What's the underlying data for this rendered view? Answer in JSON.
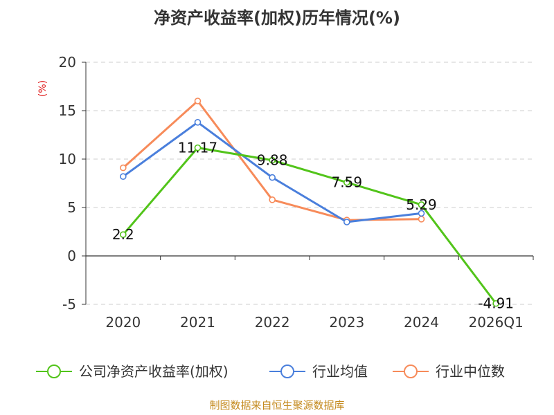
{
  "chart_data": {
    "type": "line",
    "title": "净资产收益率(加权)历年情况(%)",
    "ylabel": "(%)",
    "xlabel": "",
    "categories": [
      "2020",
      "2021",
      "2022",
      "2023",
      "2024",
      "2026Q1"
    ],
    "yticks": [
      "20",
      "15",
      "10",
      "5",
      "0",
      "-5"
    ],
    "ylim": [
      -5,
      20
    ],
    "grid": true,
    "legend_position": "bottom",
    "series": [
      {
        "name": "公司净资产收益率(加权)",
        "color": "#52c41a",
        "values": [
          2.2,
          11.17,
          9.88,
          7.59,
          5.29,
          -4.91
        ],
        "labels": [
          "2.2",
          "11.17",
          "9.88",
          "7.59",
          "5.29",
          "-4.91"
        ]
      },
      {
        "name": "行业均值",
        "color": "#4a7fdc",
        "values": [
          8.2,
          13.8,
          8.1,
          3.5,
          4.4,
          null
        ]
      },
      {
        "name": "行业中位数",
        "color": "#f78b5a",
        "values": [
          9.1,
          16.0,
          5.8,
          3.7,
          3.8,
          null
        ]
      }
    ],
    "source": "制图数据来自恒生聚源数据库",
    "unit_color": "#e02020",
    "source_color": "#c48a1e"
  }
}
